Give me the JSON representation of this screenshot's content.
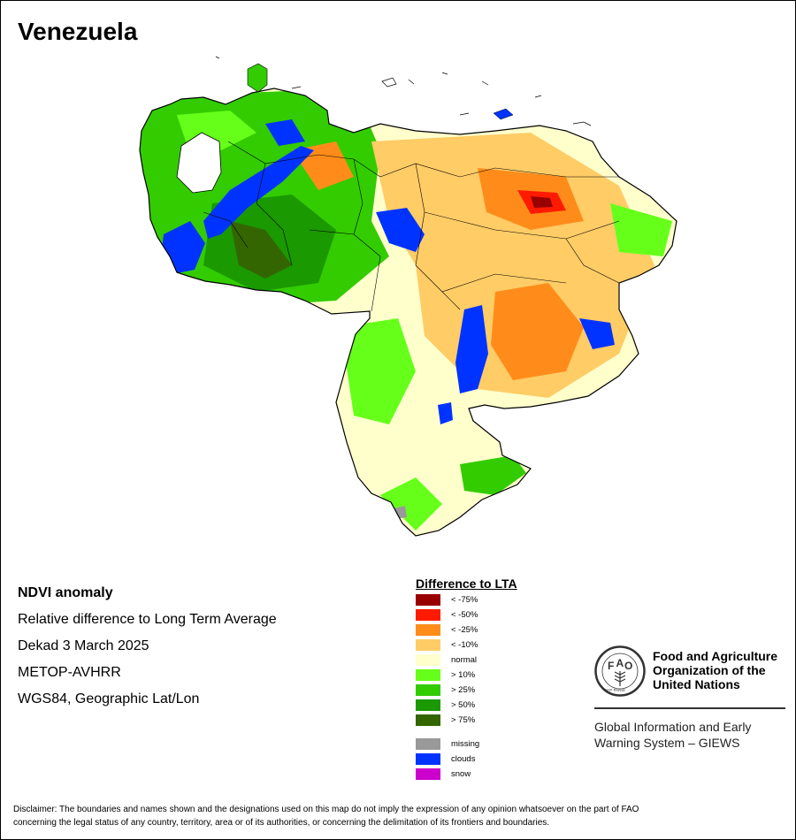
{
  "title": "Venezuela",
  "info": {
    "heading": "NDVI anomaly",
    "lines": [
      "Relative difference to Long Term Average",
      "Dekad 3 March 2025",
      "METOP-AVHRR",
      "WGS84, Geographic Lat/Lon"
    ]
  },
  "legend": {
    "title": "Difference to LTA",
    "items": [
      {
        "label": "< -75%",
        "color": "#990000"
      },
      {
        "label": "< -50%",
        "color": "#ff1a00"
      },
      {
        "label": "< -25%",
        "color": "#ff8c1a"
      },
      {
        "label": "< -10%",
        "color": "#ffcc66"
      },
      {
        "label": "normal",
        "color": "#ffffcc"
      },
      {
        "label": "> 10%",
        "color": "#66ff1a"
      },
      {
        "label": "> 25%",
        "color": "#33cc00"
      },
      {
        "label": "> 50%",
        "color": "#1a9900"
      },
      {
        "label": "> 75%",
        "color": "#336600"
      }
    ],
    "extra": [
      {
        "label": "missing",
        "color": "#999999"
      },
      {
        "label": "clouds",
        "color": "#0033ff"
      },
      {
        "label": "snow",
        "color": "#cc00cc"
      }
    ]
  },
  "fao": {
    "name_lines": [
      "Food and Agriculture",
      "Organization of the",
      "United Nations"
    ],
    "giews_lines": [
      "Global Information and Early",
      "Warning System – GIEWS"
    ],
    "logo_letters": [
      "F",
      "A",
      "O"
    ],
    "logo_motto": "FIAT PANIS"
  },
  "disclaimer": [
    "Disclaimer: The boundaries and names shown and the designations used on this map do not imply the expression of any opinion whatsoever on the part of FAO",
    "concerning the legal status of any country, territory, area or of its authorities, or concerning the delimitation of its frontiers and boundaries."
  ]
}
